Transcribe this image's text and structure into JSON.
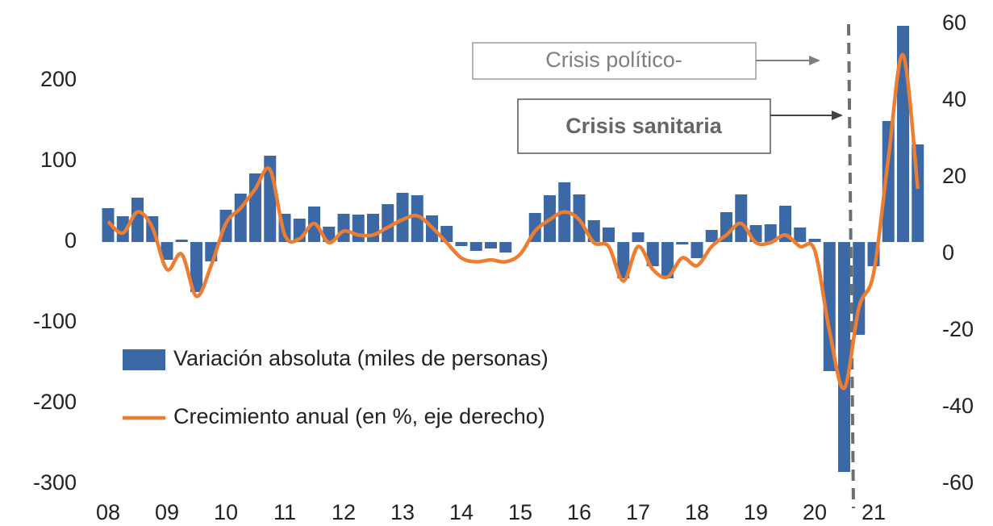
{
  "chart_data": {
    "type": "bar",
    "categories": [
      "08",
      null,
      null,
      null,
      "09",
      null,
      null,
      null,
      "10",
      null,
      null,
      null,
      "11",
      null,
      null,
      null,
      "12",
      null,
      null,
      null,
      "13",
      null,
      null,
      null,
      "14",
      null,
      null,
      null,
      "15",
      null,
      null,
      null,
      "16",
      null,
      null,
      null,
      "17",
      null,
      null,
      null,
      "18",
      null,
      null,
      null,
      "19",
      null,
      null,
      null,
      "20",
      null,
      null,
      null,
      "21",
      null,
      null,
      null
    ],
    "series": [
      {
        "name": "Variación absoluta (miles de personas)",
        "type": "bar",
        "color": "#3c68a6",
        "values": [
          42,
          32,
          55,
          32,
          -22,
          3,
          -62,
          -24,
          40,
          60,
          85,
          107,
          35,
          29,
          44,
          19,
          35,
          34,
          35,
          47,
          61,
          58,
          33,
          20,
          -5,
          -11,
          -8,
          -13,
          0,
          36,
          58,
          74,
          59,
          27,
          18,
          -45,
          12,
          -30,
          -45,
          -3,
          -20,
          15,
          37,
          59,
          21,
          22,
          45,
          18,
          4,
          -160,
          -285,
          -115,
          -30,
          150,
          268,
          121
        ]
      },
      {
        "name": "Crecimiento anual (en %, eje derecho)",
        "type": "line",
        "axis": "y2",
        "color": "#ed7d31",
        "values": [
          8.5,
          5.5,
          11,
          7,
          -4,
          0,
          -11,
          -3,
          8,
          12,
          17,
          22,
          5,
          4,
          8,
          3,
          6,
          5,
          5,
          7,
          9,
          10,
          7,
          3,
          -1,
          -2,
          -1.5,
          -2,
          0,
          6,
          9,
          11,
          9,
          3,
          2,
          -7,
          2,
          -4,
          -6,
          -1,
          -3,
          2,
          5,
          8,
          3,
          3,
          5,
          2,
          1,
          -20,
          -35,
          -14,
          -5,
          25,
          52,
          17
        ]
      }
    ],
    "ylim": [
      -300,
      270
    ],
    "yticks": [
      -300,
      -200,
      -100,
      0,
      100,
      200
    ],
    "y2lim": [
      -60,
      60
    ],
    "y2ticks": [
      -60,
      -40,
      -20,
      0,
      20,
      40,
      60
    ],
    "legend": "lower left",
    "annotations": [
      "Crisis político-",
      "Crisis sanitaria"
    ]
  }
}
